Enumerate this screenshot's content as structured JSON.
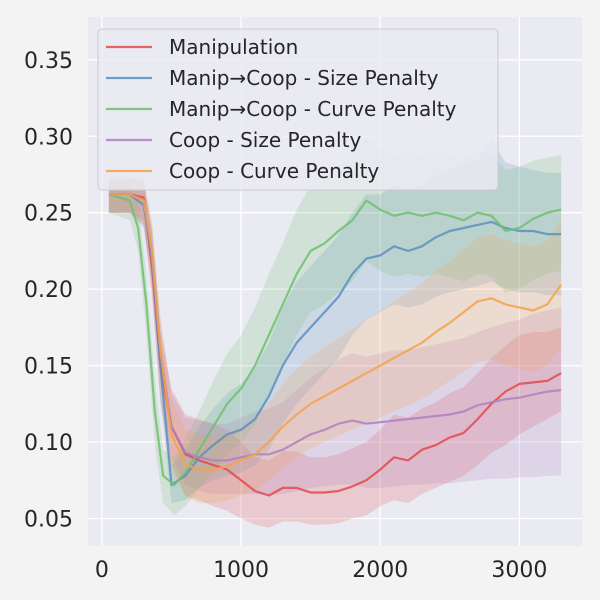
{
  "chart_data": {
    "type": "line",
    "title": "",
    "xlabel": "",
    "ylabel": "",
    "xlim": [
      -100,
      3450
    ],
    "ylim": [
      0.032,
      0.378
    ],
    "xticks": [
      0,
      1000,
      2000,
      3000
    ],
    "yticks": [
      0.05,
      0.1,
      0.15,
      0.2,
      0.25,
      0.3,
      0.35
    ],
    "xtick_labels": [
      "0",
      "1000",
      "2000",
      "3000"
    ],
    "ytick_labels": [
      "0.05",
      "0.10",
      "0.15",
      "0.20",
      "0.25",
      "0.30",
      "0.35"
    ],
    "grid": true,
    "legend_position": "top-left",
    "series": [
      {
        "name": "Manipulation",
        "color": "#e24a4a",
        "x": [
          50,
          200,
          300,
          360,
          420,
          500,
          600,
          700,
          800,
          900,
          1000,
          1100,
          1200,
          1300,
          1400,
          1500,
          1600,
          1700,
          1800,
          1900,
          2000,
          2100,
          2200,
          2300,
          2400,
          2500,
          2600,
          2700,
          2800,
          2900,
          3000,
          3100,
          3200,
          3300
        ],
        "y": [
          0.262,
          0.262,
          0.26,
          0.215,
          0.15,
          0.11,
          0.092,
          0.088,
          0.085,
          0.082,
          0.075,
          0.068,
          0.065,
          0.07,
          0.07,
          0.067,
          0.067,
          0.068,
          0.071,
          0.075,
          0.082,
          0.09,
          0.088,
          0.095,
          0.098,
          0.103,
          0.106,
          0.115,
          0.125,
          0.133,
          0.138,
          0.139,
          0.14,
          0.145
        ],
        "lower": [
          0.25,
          0.25,
          0.245,
          0.195,
          0.125,
          0.085,
          0.065,
          0.062,
          0.058,
          0.055,
          0.05,
          0.046,
          0.044,
          0.048,
          0.048,
          0.046,
          0.046,
          0.047,
          0.05,
          0.052,
          0.058,
          0.062,
          0.06,
          0.066,
          0.07,
          0.074,
          0.078,
          0.085,
          0.093,
          0.098,
          0.105,
          0.11,
          0.115,
          0.12
        ],
        "upper": [
          0.272,
          0.272,
          0.272,
          0.235,
          0.172,
          0.135,
          0.118,
          0.115,
          0.112,
          0.108,
          0.1,
          0.09,
          0.088,
          0.094,
          0.094,
          0.09,
          0.09,
          0.092,
          0.096,
          0.1,
          0.108,
          0.118,
          0.116,
          0.122,
          0.126,
          0.132,
          0.136,
          0.145,
          0.155,
          0.163,
          0.17,
          0.172,
          0.172,
          0.175
        ]
      },
      {
        "name": "Manip→Coop - Size Penalty",
        "color": "#5a8fbf",
        "x": [
          50,
          200,
          300,
          360,
          420,
          500,
          600,
          700,
          800,
          900,
          1000,
          1100,
          1200,
          1300,
          1400,
          1500,
          1600,
          1700,
          1800,
          1900,
          2000,
          2100,
          2200,
          2300,
          2400,
          2500,
          2600,
          2700,
          2800,
          2900,
          3000,
          3100,
          3200,
          3300
        ],
        "y": [
          0.262,
          0.262,
          0.255,
          0.22,
          0.15,
          0.072,
          0.078,
          0.09,
          0.098,
          0.105,
          0.108,
          0.115,
          0.13,
          0.15,
          0.165,
          0.175,
          0.185,
          0.195,
          0.21,
          0.22,
          0.222,
          0.228,
          0.225,
          0.228,
          0.234,
          0.238,
          0.24,
          0.242,
          0.244,
          0.24,
          0.238,
          0.238,
          0.236,
          0.236
        ],
        "lower": [
          0.25,
          0.25,
          0.24,
          0.2,
          0.128,
          0.06,
          0.062,
          0.07,
          0.075,
          0.078,
          0.08,
          0.085,
          0.095,
          0.112,
          0.125,
          0.135,
          0.145,
          0.155,
          0.17,
          0.18,
          0.185,
          0.19,
          0.188,
          0.19,
          0.195,
          0.198,
          0.2,
          0.202,
          0.205,
          0.2,
          0.198,
          0.198,
          0.196,
          0.196
        ],
        "upper": [
          0.274,
          0.274,
          0.268,
          0.24,
          0.172,
          0.085,
          0.095,
          0.11,
          0.122,
          0.132,
          0.138,
          0.148,
          0.165,
          0.188,
          0.205,
          0.215,
          0.225,
          0.235,
          0.25,
          0.262,
          0.262,
          0.268,
          0.265,
          0.268,
          0.274,
          0.278,
          0.282,
          0.285,
          0.298,
          0.283,
          0.28,
          0.278,
          0.276,
          0.276
        ]
      },
      {
        "name": "Manip→Coop - Curve Penalty",
        "color": "#6fbf6f",
        "x": [
          50,
          200,
          260,
          320,
          380,
          440,
          520,
          600,
          700,
          800,
          900,
          1000,
          1100,
          1200,
          1300,
          1400,
          1500,
          1600,
          1700,
          1800,
          1900,
          2000,
          2100,
          2200,
          2300,
          2400,
          2500,
          2600,
          2700,
          2800,
          2900,
          3000,
          3100,
          3200,
          3300
        ],
        "y": [
          0.262,
          0.258,
          0.24,
          0.19,
          0.12,
          0.078,
          0.072,
          0.08,
          0.095,
          0.11,
          0.125,
          0.135,
          0.15,
          0.17,
          0.19,
          0.21,
          0.225,
          0.23,
          0.238,
          0.245,
          0.258,
          0.252,
          0.248,
          0.25,
          0.248,
          0.25,
          0.248,
          0.245,
          0.25,
          0.248,
          0.238,
          0.24,
          0.246,
          0.25,
          0.252
        ],
        "lower": [
          0.25,
          0.245,
          0.225,
          0.17,
          0.098,
          0.06,
          0.052,
          0.058,
          0.07,
          0.08,
          0.092,
          0.1,
          0.112,
          0.13,
          0.15,
          0.17,
          0.185,
          0.19,
          0.198,
          0.205,
          0.218,
          0.212,
          0.208,
          0.21,
          0.208,
          0.21,
          0.208,
          0.205,
          0.21,
          0.208,
          0.198,
          0.2,
          0.206,
          0.21,
          0.212
        ],
        "upper": [
          0.272,
          0.27,
          0.255,
          0.21,
          0.142,
          0.095,
          0.09,
          0.102,
          0.12,
          0.14,
          0.158,
          0.17,
          0.188,
          0.21,
          0.23,
          0.252,
          0.268,
          0.272,
          0.28,
          0.288,
          0.298,
          0.292,
          0.288,
          0.29,
          0.288,
          0.29,
          0.288,
          0.285,
          0.29,
          0.288,
          0.278,
          0.28,
          0.284,
          0.286,
          0.288
        ]
      },
      {
        "name": "Coop - Size Penalty",
        "color": "#b07fc0",
        "x": [
          50,
          200,
          300,
          360,
          420,
          500,
          600,
          700,
          800,
          900,
          1000,
          1100,
          1200,
          1300,
          1400,
          1500,
          1600,
          1700,
          1800,
          1900,
          2000,
          2100,
          2200,
          2300,
          2400,
          2500,
          2600,
          2700,
          2800,
          2900,
          3000,
          3100,
          3200,
          3300
        ],
        "y": [
          0.262,
          0.262,
          0.258,
          0.222,
          0.16,
          0.11,
          0.093,
          0.09,
          0.088,
          0.088,
          0.09,
          0.092,
          0.092,
          0.095,
          0.1,
          0.105,
          0.108,
          0.112,
          0.114,
          0.112,
          0.113,
          0.114,
          0.115,
          0.116,
          0.117,
          0.118,
          0.12,
          0.124,
          0.126,
          0.128,
          0.129,
          0.131,
          0.133,
          0.134
        ],
        "lower": [
          0.25,
          0.25,
          0.242,
          0.205,
          0.14,
          0.09,
          0.072,
          0.068,
          0.066,
          0.066,
          0.066,
          0.066,
          0.065,
          0.066,
          0.068,
          0.07,
          0.071,
          0.072,
          0.072,
          0.07,
          0.07,
          0.071,
          0.072,
          0.072,
          0.073,
          0.073,
          0.074,
          0.075,
          0.076,
          0.076,
          0.077,
          0.077,
          0.078,
          0.078
        ],
        "upper": [
          0.272,
          0.272,
          0.272,
          0.24,
          0.18,
          0.132,
          0.116,
          0.114,
          0.112,
          0.112,
          0.116,
          0.12,
          0.122,
          0.126,
          0.134,
          0.142,
          0.148,
          0.154,
          0.158,
          0.156,
          0.158,
          0.16,
          0.16,
          0.162,
          0.164,
          0.166,
          0.168,
          0.172,
          0.175,
          0.178,
          0.18,
          0.184,
          0.186,
          0.188
        ]
      },
      {
        "name": "Coop - Curve Penalty",
        "color": "#f4a24a",
        "x": [
          50,
          200,
          300,
          360,
          420,
          500,
          600,
          700,
          800,
          900,
          1000,
          1100,
          1200,
          1300,
          1400,
          1500,
          1600,
          1700,
          1800,
          1900,
          2000,
          2100,
          2200,
          2300,
          2400,
          2500,
          2600,
          2700,
          2800,
          2900,
          3000,
          3100,
          3200,
          3300
        ],
        "y": [
          0.262,
          0.262,
          0.258,
          0.225,
          0.16,
          0.105,
          0.085,
          0.082,
          0.082,
          0.084,
          0.088,
          0.092,
          0.1,
          0.11,
          0.118,
          0.125,
          0.13,
          0.135,
          0.14,
          0.145,
          0.15,
          0.155,
          0.16,
          0.165,
          0.172,
          0.178,
          0.185,
          0.192,
          0.194,
          0.19,
          0.188,
          0.186,
          0.19,
          0.203
        ],
        "lower": [
          0.25,
          0.25,
          0.242,
          0.205,
          0.138,
          0.082,
          0.064,
          0.06,
          0.06,
          0.062,
          0.065,
          0.068,
          0.075,
          0.083,
          0.09,
          0.096,
          0.1,
          0.104,
          0.108,
          0.112,
          0.116,
          0.12,
          0.124,
          0.128,
          0.134,
          0.14,
          0.146,
          0.152,
          0.154,
          0.15,
          0.148,
          0.146,
          0.15,
          0.162
        ],
        "upper": [
          0.272,
          0.272,
          0.272,
          0.245,
          0.182,
          0.128,
          0.108,
          0.105,
          0.104,
          0.106,
          0.11,
          0.116,
          0.126,
          0.138,
          0.148,
          0.156,
          0.162,
          0.168,
          0.174,
          0.18,
          0.186,
          0.192,
          0.198,
          0.204,
          0.212,
          0.218,
          0.226,
          0.234,
          0.236,
          0.232,
          0.23,
          0.228,
          0.232,
          0.246
        ]
      }
    ]
  }
}
